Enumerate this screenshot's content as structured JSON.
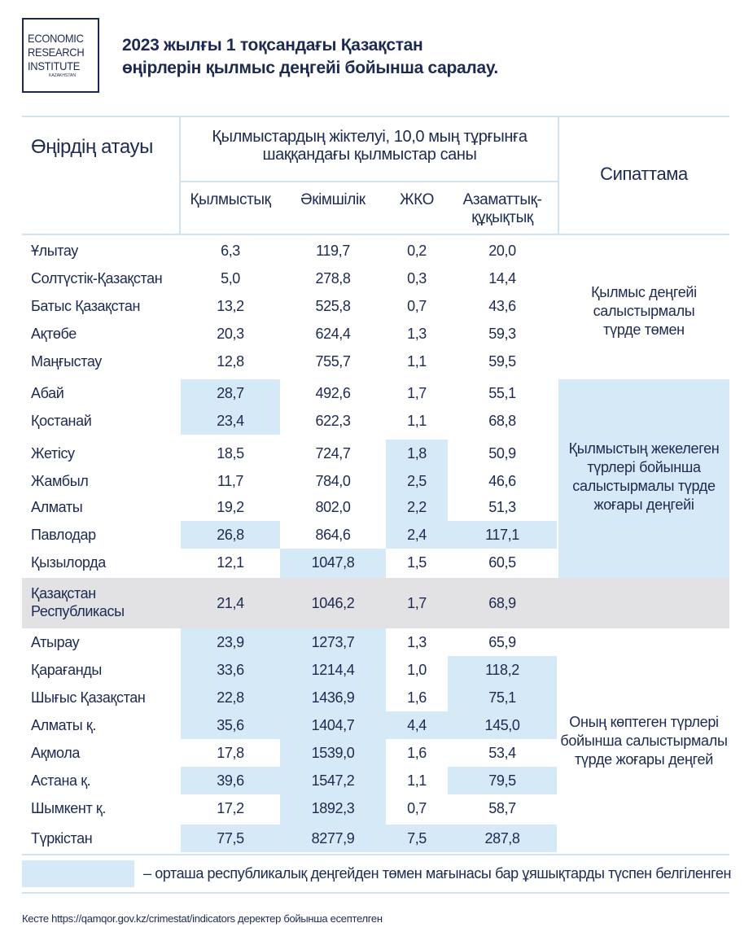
{
  "logo": {
    "line1": "ECONOMIC",
    "line2": "RESEARCH",
    "line3": "INSTITUTE",
    "line4": "KAZAKHSTAN"
  },
  "title": {
    "line1": "2023 жылғы 1 тоқсандағы Қазақстан",
    "line2": "өңірлерін қылмыс деңгейі бойынша саралау."
  },
  "table": {
    "col_region": "Өңірдің атауы",
    "group_header_line1": "Қылмыстардың жіктелуі, 10,0 мың тұрғынға",
    "group_header_line2": "шаққандағы қылмыстар саны",
    "col_criminal": "Қылмыстық",
    "col_admin": "Әкімшілік",
    "col_jko": "ЖКО",
    "col_civil_line1": "Азаматтық-",
    "col_civil_line2": "құқықтық",
    "col_desc": "Сипаттама",
    "rows": [
      {
        "name": "Ұлытау",
        "c": "6,3",
        "a": "119,7",
        "j": "0,2",
        "cv": "20,0"
      },
      {
        "name": "Солтүстік-Қазақстан",
        "c": "5,0",
        "a": "278,8",
        "j": "0,3",
        "cv": "14,4"
      },
      {
        "name": "Батыс Қазақстан",
        "c": "13,2",
        "a": "525,8",
        "j": "0,7",
        "cv": "43,6"
      },
      {
        "name": "Ақтөбе",
        "c": "20,3",
        "a": "624,4",
        "j": "1,3",
        "cv": "59,3"
      },
      {
        "name": "Маңғыстау",
        "c": "12,8",
        "a": "755,7",
        "j": "1,1",
        "cv": "59,5"
      },
      {
        "name": "Абай",
        "c": "28,7",
        "a": "492,6",
        "j": "1,7",
        "cv": "55,1"
      },
      {
        "name": "Қостанай",
        "c": "23,4",
        "a": "622,3",
        "j": "1,1",
        "cv": "68,8"
      },
      {
        "name": "Жетісу",
        "c": "18,5",
        "a": "724,7",
        "j": "1,8",
        "cv": "50,9"
      },
      {
        "name": "Жамбыл",
        "c": "11,7",
        "a": "784,0",
        "j": "2,5",
        "cv": "46,6"
      },
      {
        "name": "Алматы",
        "c": "19,2",
        "a": "802,0",
        "j": "2,2",
        "cv": "51,3"
      },
      {
        "name": "Павлодар",
        "c": "26,8",
        "a": "864,6",
        "j": "2,4",
        "cv": "117,1"
      },
      {
        "name": "Қызылорда",
        "c": "12,1",
        "a": "1047,8",
        "j": "1,5",
        "cv": "60,5"
      },
      {
        "name_line1": "Қазақстан",
        "name_line2": "Республикасы",
        "c": "21,4",
        "a": "1046,2",
        "j": "1,7",
        "cv": "68,9"
      },
      {
        "name": "Атырау",
        "c": "23,9",
        "a": "1273,7",
        "j": "1,3",
        "cv": "65,9"
      },
      {
        "name": "Қарағанды",
        "c": "33,6",
        "a": "1214,4",
        "j": "1,0",
        "cv": "118,2"
      },
      {
        "name": "Шығыс Қазақстан",
        "c": "22,8",
        "a": "1436,9",
        "j": "1,6",
        "cv": "75,1"
      },
      {
        "name": "Алматы қ.",
        "c": "35,6",
        "a": "1404,7",
        "j": "4,4",
        "cv": "145,0"
      },
      {
        "name": "Ақмола",
        "c": "17,8",
        "a": "1539,0",
        "j": "1,6",
        "cv": "53,4"
      },
      {
        "name": "Астана қ.",
        "c": "39,6",
        "a": "1547,2",
        "j": "1,1",
        "cv": "79,5"
      },
      {
        "name": "Шымкент қ.",
        "c": "17,2",
        "a": "1892,3",
        "j": "0,7",
        "cv": "58,7"
      },
      {
        "name": "Түркістан",
        "c": "77,5",
        "a": "8277,9",
        "j": "7,5",
        "cv": "287,8"
      }
    ],
    "desc_low": {
      "l1": "Қылмыс деңгейі",
      "l2": "салыстырмалы",
      "l3": "түрде төмен"
    },
    "desc_mid": {
      "l1": "Қылмыстың жекелеген",
      "l2": "түрлері бойынша",
      "l3": "салыстырмалы түрде",
      "l4": "жоғары деңгейі"
    },
    "desc_high": {
      "l1": "Оның көптеген түрлері",
      "l2": "бойынша салыстырмалы",
      "l3": "түрде жоғары деңгей"
    }
  },
  "legend": {
    "text": "– орташа республикалық деңгейден төмен мағынасы бар ұяшықтарды түспен белгіленген",
    "color": "#d5e9f6"
  },
  "source": "Кесте https://qamqor.gov.kz/crimestat/indicators деректер бойынша есептелген",
  "colors": {
    "text": "#1c2a52",
    "highlight": "#d5e9f6",
    "total_row": "#e2e2e4",
    "rule": "#cfe3f1"
  }
}
